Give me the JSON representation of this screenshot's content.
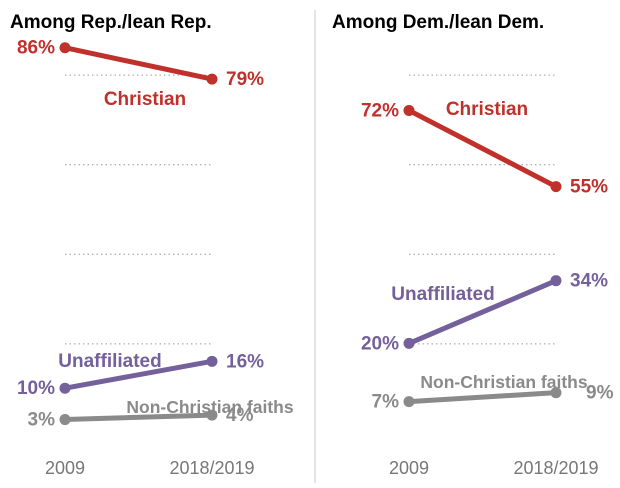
{
  "chart_data": [
    {
      "type": "line",
      "title": "Among Rep./lean Rep.",
      "categories": [
        "2009",
        "2018/2019"
      ],
      "ylim": [
        0,
        100
      ],
      "series": [
        {
          "name": "Christian",
          "values": [
            86,
            79
          ],
          "labels": [
            "86%",
            "79%"
          ],
          "color": "#c0312b"
        },
        {
          "name": "Unaffiliated",
          "values": [
            10,
            16
          ],
          "labels": [
            "10%",
            "16%"
          ],
          "color": "#74609b"
        },
        {
          "name": "Non-Christian faiths",
          "values": [
            3,
            4
          ],
          "labels": [
            "3%",
            "4%"
          ],
          "color": "#8a8a8a"
        }
      ]
    },
    {
      "type": "line",
      "title": "Among Dem./lean Dem.",
      "categories": [
        "2009",
        "2018/2019"
      ],
      "ylim": [
        0,
        100
      ],
      "series": [
        {
          "name": "Christian",
          "values": [
            72,
            55
          ],
          "labels": [
            "72%",
            "55%"
          ],
          "color": "#c0312b"
        },
        {
          "name": "Unaffiliated",
          "values": [
            20,
            34
          ],
          "labels": [
            "20%",
            "34%"
          ],
          "color": "#74609b"
        },
        {
          "name": "Non-Christian faiths",
          "values": [
            7,
            9
          ],
          "labels": [
            "7%",
            "9%"
          ],
          "color": "#8a8a8a"
        }
      ]
    }
  ]
}
